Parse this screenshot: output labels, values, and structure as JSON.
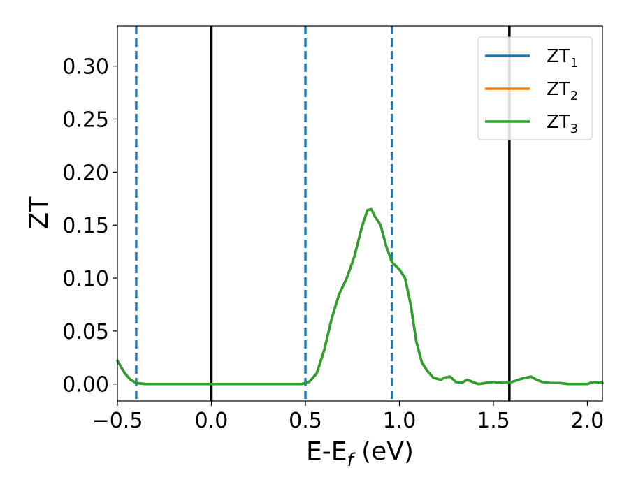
{
  "chart_data": {
    "type": "line",
    "xlabel": "E-E",
    "xlabel_sub": "f",
    "xlabel_suffix": " (eV)",
    "ylabel": "ZT",
    "xlim": [
      -0.5,
      2.08
    ],
    "ylim": [
      -0.016,
      0.338
    ],
    "xticks": [
      -0.5,
      0.0,
      0.5,
      1.0,
      1.5,
      2.0
    ],
    "xtick_labels": [
      "−0.5",
      "0.0",
      "0.5",
      "1.0",
      "1.5",
      "2.0"
    ],
    "yticks": [
      0.0,
      0.05,
      0.1,
      0.15,
      0.2,
      0.25,
      0.3
    ],
    "ytick_labels": [
      "0.00",
      "0.05",
      "0.10",
      "0.15",
      "0.20",
      "0.25",
      "0.30"
    ],
    "grid": false,
    "legend_position": "top-right",
    "vlines_solid": [
      0.0,
      1.585
    ],
    "vlines_dashed": [
      -0.4,
      0.5,
      0.96
    ],
    "series": [
      {
        "base": "ZT",
        "sub": "1",
        "color": "#1f77b4",
        "x": [
          -0.5,
          -0.46,
          -0.43,
          -0.4,
          -0.35,
          -0.3,
          -0.2,
          0.0,
          0.2,
          0.4,
          0.48,
          0.52,
          0.56,
          0.6,
          0.64,
          0.68,
          0.72,
          0.76,
          0.8,
          0.83,
          0.85,
          0.87,
          0.9,
          0.93,
          0.96,
          1.0,
          1.03,
          1.06,
          1.09,
          1.12,
          1.15,
          1.18,
          1.22,
          1.24,
          1.27,
          1.3,
          1.33,
          1.36,
          1.39,
          1.42,
          1.46,
          1.5,
          1.55,
          1.6,
          1.65,
          1.7,
          1.73,
          1.76,
          1.8,
          1.85,
          1.9,
          1.95,
          2.0,
          2.03,
          2.08
        ],
        "y": [
          0.022,
          0.01,
          0.004,
          0.001,
          0.0,
          0.0,
          0.0,
          0.0,
          0.0,
          0.0,
          0.0,
          0.002,
          0.01,
          0.032,
          0.062,
          0.085,
          0.1,
          0.12,
          0.148,
          0.164,
          0.165,
          0.158,
          0.15,
          0.13,
          0.115,
          0.108,
          0.1,
          0.075,
          0.04,
          0.02,
          0.012,
          0.006,
          0.004,
          0.006,
          0.007,
          0.002,
          0.001,
          0.004,
          0.002,
          0.0,
          0.001,
          0.002,
          0.001,
          0.002,
          0.005,
          0.007,
          0.004,
          0.002,
          0.001,
          0.001,
          0.0,
          0.0,
          0.0,
          0.002,
          0.001
        ]
      },
      {
        "base": "ZT",
        "sub": "2",
        "color": "#ff7f0e",
        "x": [
          -0.5,
          -0.46,
          -0.43,
          -0.4,
          -0.35,
          -0.3,
          -0.2,
          0.0,
          0.2,
          0.4,
          0.48,
          0.52,
          0.56,
          0.6,
          0.64,
          0.68,
          0.72,
          0.76,
          0.8,
          0.83,
          0.85,
          0.87,
          0.9,
          0.93,
          0.96,
          1.0,
          1.03,
          1.06,
          1.09,
          1.12,
          1.15,
          1.18,
          1.22,
          1.24,
          1.27,
          1.3,
          1.33,
          1.36,
          1.39,
          1.42,
          1.46,
          1.5,
          1.55,
          1.6,
          1.65,
          1.7,
          1.73,
          1.76,
          1.8,
          1.85,
          1.9,
          1.95,
          2.0,
          2.03,
          2.08
        ],
        "y": [
          0.022,
          0.01,
          0.004,
          0.001,
          0.0,
          0.0,
          0.0,
          0.0,
          0.0,
          0.0,
          0.0,
          0.002,
          0.01,
          0.032,
          0.062,
          0.085,
          0.1,
          0.12,
          0.148,
          0.164,
          0.165,
          0.158,
          0.15,
          0.13,
          0.115,
          0.108,
          0.1,
          0.075,
          0.04,
          0.02,
          0.012,
          0.006,
          0.004,
          0.006,
          0.007,
          0.002,
          0.001,
          0.004,
          0.002,
          0.0,
          0.001,
          0.002,
          0.001,
          0.002,
          0.005,
          0.007,
          0.004,
          0.002,
          0.001,
          0.001,
          0.0,
          0.0,
          0.0,
          0.002,
          0.001
        ]
      },
      {
        "base": "ZT",
        "sub": "3",
        "color": "#2ca02c",
        "x": [
          -0.5,
          -0.46,
          -0.43,
          -0.4,
          -0.35,
          -0.3,
          -0.2,
          0.0,
          0.2,
          0.4,
          0.48,
          0.52,
          0.56,
          0.6,
          0.64,
          0.68,
          0.72,
          0.76,
          0.8,
          0.83,
          0.85,
          0.87,
          0.9,
          0.93,
          0.96,
          1.0,
          1.03,
          1.06,
          1.09,
          1.12,
          1.15,
          1.18,
          1.22,
          1.24,
          1.27,
          1.3,
          1.33,
          1.36,
          1.39,
          1.42,
          1.46,
          1.5,
          1.55,
          1.6,
          1.65,
          1.7,
          1.73,
          1.76,
          1.8,
          1.85,
          1.9,
          1.95,
          2.0,
          2.03,
          2.08
        ],
        "y": [
          0.022,
          0.01,
          0.004,
          0.001,
          0.0,
          0.0,
          0.0,
          0.0,
          0.0,
          0.0,
          0.0,
          0.002,
          0.01,
          0.032,
          0.062,
          0.085,
          0.1,
          0.12,
          0.148,
          0.164,
          0.165,
          0.158,
          0.15,
          0.13,
          0.115,
          0.108,
          0.1,
          0.075,
          0.04,
          0.02,
          0.012,
          0.006,
          0.004,
          0.006,
          0.007,
          0.002,
          0.001,
          0.004,
          0.002,
          0.0,
          0.001,
          0.002,
          0.001,
          0.002,
          0.005,
          0.007,
          0.004,
          0.002,
          0.001,
          0.001,
          0.0,
          0.0,
          0.0,
          0.002,
          0.001
        ]
      }
    ]
  },
  "colors": {
    "vline_solid": "#000000",
    "vline_dashed": "#1f77b4",
    "axes": "#000000"
  }
}
